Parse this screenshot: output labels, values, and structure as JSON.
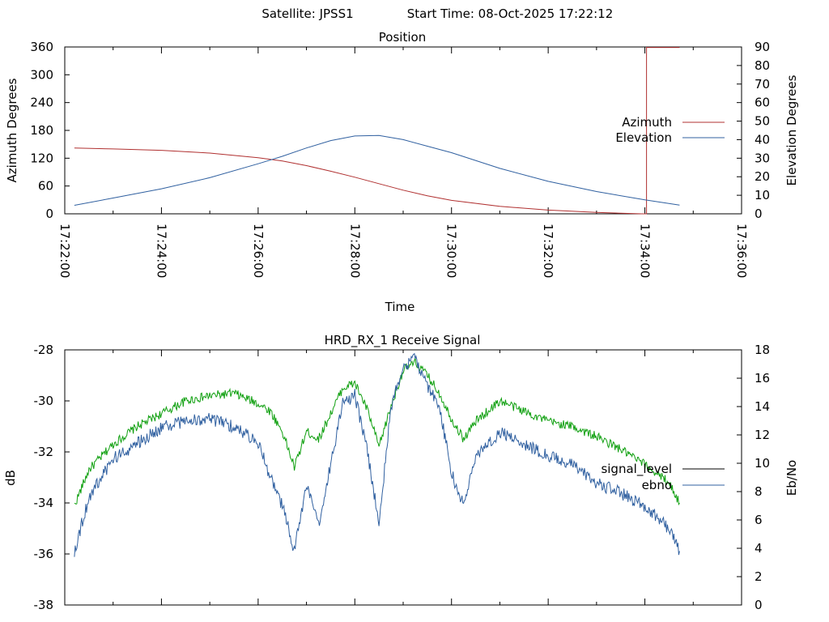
{
  "header": {
    "satellite_label": "Satellite: JPSS1",
    "start_label": "Start Time: 08-Oct-2025 17:22:12"
  },
  "chart_data": [
    {
      "type": "line",
      "title": "Position",
      "xlabel": "Time",
      "ylabel": "Azimuth Degrees",
      "y2label": "Elevation Degrees",
      "xlim": [
        "17:22:00",
        "17:36:00"
      ],
      "x_ticks": [
        "17:22:00",
        "17:24:00",
        "17:26:00",
        "17:28:00",
        "17:30:00",
        "17:32:00",
        "17:34:00",
        "17:36:00"
      ],
      "ylim": [
        0,
        360
      ],
      "y_ticks": [
        "0",
        "60",
        "120",
        "180",
        "240",
        "300",
        "360"
      ],
      "y2lim": [
        0,
        90
      ],
      "y2_ticks": [
        "0",
        "10",
        "20",
        "30",
        "40",
        "50",
        "60",
        "70",
        "80",
        "90"
      ],
      "legend_position": "right",
      "series": [
        {
          "name": "Azimuth",
          "axis": "left",
          "color": "#b03030",
          "x": [
            "17:22:12",
            "17:23:00",
            "17:24:00",
            "17:25:00",
            "17:26:00",
            "17:26:30",
            "17:27:00",
            "17:27:30",
            "17:28:00",
            "17:28:30",
            "17:29:00",
            "17:29:30",
            "17:30:00",
            "17:31:00",
            "17:32:00",
            "17:33:00",
            "17:33:56",
            "17:34:00",
            "17:34:02",
            "17:34:43"
          ],
          "values": [
            142,
            140,
            137,
            131,
            121,
            114,
            104,
            92,
            79,
            65,
            51,
            39,
            29,
            16,
            8,
            3,
            0,
            0,
            359,
            359
          ]
        },
        {
          "name": "Elevation",
          "axis": "right",
          "color": "#3060a0",
          "x": [
            "17:22:12",
            "17:23:00",
            "17:24:00",
            "17:25:00",
            "17:26:00",
            "17:26:30",
            "17:27:00",
            "17:27:30",
            "17:28:00",
            "17:28:30",
            "17:29:00",
            "17:29:30",
            "17:30:00",
            "17:31:00",
            "17:32:00",
            "17:33:00",
            "17:34:00",
            "17:34:43"
          ],
          "values": [
            4.6,
            8.5,
            13.5,
            19.5,
            27,
            31,
            35.5,
            39.5,
            42,
            42.3,
            40,
            36.5,
            33,
            24.5,
            17.5,
            12,
            7.5,
            4.7
          ]
        }
      ]
    },
    {
      "type": "line",
      "title": "HRD_RX_1 Receive Signal",
      "ylabel": "dB",
      "y2label": "Eb/No",
      "xlim": [
        "17:22:00",
        "17:36:00"
      ],
      "ylim": [
        -38,
        -28
      ],
      "y_ticks": [
        "-28",
        "-30",
        "-32",
        "-34",
        "-36",
        "-38"
      ],
      "y2lim": [
        0,
        18
      ],
      "y2_ticks": [
        "0",
        "2",
        "4",
        "6",
        "8",
        "10",
        "12",
        "14",
        "16",
        "18"
      ],
      "legend_position": "right",
      "series": [
        {
          "name": "signal_level",
          "axis": "left",
          "color": "#000000",
          "x": [
            "17:22:12",
            "17:22:30",
            "17:23:00",
            "17:23:30",
            "17:24:00",
            "17:24:30",
            "17:25:00",
            "17:25:30",
            "17:26:00",
            "17:26:15",
            "17:26:30",
            "17:26:45",
            "17:27:00",
            "17:27:15",
            "17:27:30",
            "17:27:45",
            "17:28:00",
            "17:28:15",
            "17:28:30",
            "17:28:45",
            "17:29:00",
            "17:29:15",
            "17:29:30",
            "17:29:45",
            "17:30:00",
            "17:30:15",
            "17:30:30",
            "17:31:00",
            "17:31:30",
            "17:32:00",
            "17:32:30",
            "17:33:00",
            "17:33:30",
            "17:34:00",
            "17:34:30",
            "17:34:43"
          ],
          "values": [
            -34.1,
            -32.7,
            -31.7,
            -31.0,
            -30.5,
            -30.0,
            -29.8,
            -29.7,
            -30.1,
            -30.4,
            -31.2,
            -32.6,
            -31.2,
            -31.5,
            -30.5,
            -29.5,
            -29.3,
            -30.3,
            -31.8,
            -30.2,
            -28.8,
            -28.5,
            -29.0,
            -29.7,
            -30.7,
            -31.5,
            -30.8,
            -30.0,
            -30.4,
            -30.8,
            -31.0,
            -31.4,
            -31.9,
            -32.5,
            -33.2,
            -34.0
          ]
        },
        {
          "name": "ebno",
          "axis": "right",
          "color": "#3060a0",
          "x": [
            "17:22:12",
            "17:22:30",
            "17:23:00",
            "17:23:30",
            "17:24:00",
            "17:24:30",
            "17:25:00",
            "17:25:30",
            "17:26:00",
            "17:26:15",
            "17:26:30",
            "17:26:45",
            "17:27:00",
            "17:27:15",
            "17:27:30",
            "17:27:45",
            "17:28:00",
            "17:28:15",
            "17:28:30",
            "17:28:45",
            "17:29:00",
            "17:29:15",
            "17:29:30",
            "17:29:45",
            "17:30:00",
            "17:30:15",
            "17:30:30",
            "17:31:00",
            "17:31:30",
            "17:32:00",
            "17:32:30",
            "17:33:00",
            "17:33:30",
            "17:34:00",
            "17:34:30",
            "17:34:43"
          ],
          "values": [
            3.8,
            7.6,
            10.3,
            11.4,
            12.5,
            13.0,
            13.1,
            12.6,
            11.5,
            9.0,
            7.0,
            3.8,
            8.5,
            5.5,
            10.0,
            14.2,
            14.8,
            11.0,
            5.8,
            14.0,
            16.8,
            17.4,
            15.5,
            14.0,
            9.3,
            7.0,
            10.5,
            12.2,
            11.4,
            10.5,
            9.9,
            8.6,
            7.9,
            7.0,
            5.4,
            3.8
          ]
        }
      ]
    }
  ]
}
